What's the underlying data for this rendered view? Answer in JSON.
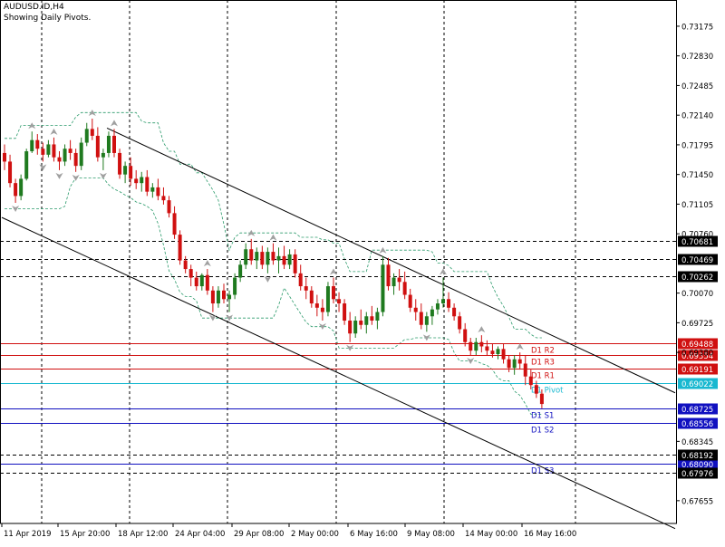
{
  "header": {
    "symbol_line": "AUDUSD.ID,H4",
    "subtitle": "Showing Daily Pivots."
  },
  "colors": {
    "bull": "#1f7a1f",
    "bear": "#d01010",
    "resistance": "#d01010",
    "pivot": "#18b8d0",
    "support": "#1010c0",
    "band": "#2a9a6a",
    "fractal": "#a0a0a0",
    "channel": "#000000",
    "grid": "#000000"
  },
  "chart_data": {
    "type": "candlestick",
    "title": "AUDUSD.ID,H4",
    "subtitle": "Showing Daily Pivots.",
    "ylim": [
      0.6739,
      0.7348
    ],
    "y_ticks": [
      "0.73175",
      "0.72830",
      "0.72485",
      "0.72140",
      "0.71795",
      "0.71450",
      "0.71105",
      "0.70760",
      "0.70070",
      "0.69725",
      "0.69380",
      "0.68345",
      "0.67655"
    ],
    "x_ticks": [
      "11 Apr 2019",
      "15 Apr 20:00",
      "18 Apr 12:00",
      "24 Apr 04:00",
      "29 Apr 08:00",
      "2 May 00:00",
      "6 May 16:00",
      "9 May 08:00",
      "14 May 00:00",
      "16 May 16:00"
    ],
    "grid": true,
    "pivots": [
      {
        "label": "D1 R3",
        "value": 0.69354,
        "price_label": "0.69354",
        "kind": "resistance"
      },
      {
        "label": "D1 R2",
        "value": 0.69488,
        "price_label": "0.69488",
        "kind": "resistance"
      },
      {
        "label": "D1 R1",
        "value": 0.69191,
        "price_label": "0.69191",
        "kind": "resistance"
      },
      {
        "label": "D1 Pivot",
        "value": 0.69022,
        "price_label": "0.69022",
        "kind": "pivot"
      },
      {
        "label": "D1 S1",
        "value": 0.68725,
        "price_label": "0.68725",
        "kind": "support"
      },
      {
        "label": "D1 S2",
        "value": 0.68556,
        "price_label": "0.68556",
        "kind": "support"
      },
      {
        "label": "D1 S3",
        "value": 0.6809,
        "price_label": "0.68090",
        "kind": "support"
      }
    ],
    "dashed_levels": [
      {
        "value": 0.70681,
        "price_label": "0.70681"
      },
      {
        "value": 0.70469,
        "price_label": "0.70469"
      },
      {
        "value": 0.70262,
        "price_label": "0.70262"
      },
      {
        "value": 0.68192,
        "price_label": "0.68192"
      },
      {
        "value": 0.67976,
        "price_label": "0.67976"
      }
    ],
    "channel_lines": [
      {
        "x": [
          118,
          745
        ],
        "y": [
          0.7199,
          0.6891
        ]
      },
      {
        "x": [
          2,
          745
        ],
        "y": [
          0.7095,
          0.6733
        ]
      }
    ],
    "candles": [
      [
        0.717,
        0.718,
        0.715,
        0.716
      ],
      [
        0.716,
        0.7168,
        0.713,
        0.7135
      ],
      [
        0.7135,
        0.714,
        0.7112,
        0.712
      ],
      [
        0.712,
        0.7145,
        0.7115,
        0.714
      ],
      [
        0.714,
        0.7175,
        0.7138,
        0.7172
      ],
      [
        0.7172,
        0.7195,
        0.717,
        0.7185
      ],
      [
        0.7185,
        0.7192,
        0.7168,
        0.7175
      ],
      [
        0.7175,
        0.7182,
        0.716,
        0.7168
      ],
      [
        0.7168,
        0.7185,
        0.7165,
        0.718
      ],
      [
        0.718,
        0.7188,
        0.716,
        0.7165
      ],
      [
        0.7165,
        0.7172,
        0.715,
        0.716
      ],
      [
        0.716,
        0.718,
        0.7155,
        0.7175
      ],
      [
        0.7175,
        0.7185,
        0.7162,
        0.717
      ],
      [
        0.717,
        0.7175,
        0.7148,
        0.7155
      ],
      [
        0.7155,
        0.7188,
        0.715,
        0.7182
      ],
      [
        0.7182,
        0.7205,
        0.7178,
        0.7198
      ],
      [
        0.7198,
        0.721,
        0.7185,
        0.719
      ],
      [
        0.719,
        0.72,
        0.716,
        0.7165
      ],
      [
        0.7165,
        0.7175,
        0.715,
        0.717
      ],
      [
        0.717,
        0.7195,
        0.7165,
        0.719
      ],
      [
        0.719,
        0.7198,
        0.7165,
        0.717
      ],
      [
        0.717,
        0.7175,
        0.714,
        0.7145
      ],
      [
        0.7145,
        0.716,
        0.7135,
        0.7155
      ],
      [
        0.7155,
        0.7165,
        0.7132,
        0.714
      ],
      [
        0.714,
        0.715,
        0.7128,
        0.7135
      ],
      [
        0.7135,
        0.7148,
        0.7125,
        0.7142
      ],
      [
        0.7142,
        0.715,
        0.712,
        0.7125
      ],
      [
        0.7125,
        0.7135,
        0.7118,
        0.713
      ],
      [
        0.713,
        0.714,
        0.7115,
        0.712
      ],
      [
        0.712,
        0.713,
        0.711,
        0.7115
      ],
      [
        0.7115,
        0.712,
        0.7095,
        0.71
      ],
      [
        0.71,
        0.7108,
        0.707,
        0.7075
      ],
      [
        0.7075,
        0.708,
        0.704,
        0.7045
      ],
      [
        0.7045,
        0.705,
        0.703,
        0.7035
      ],
      [
        0.7035,
        0.704,
        0.7015,
        0.7025
      ],
      [
        0.7025,
        0.7032,
        0.701,
        0.7015
      ],
      [
        0.7015,
        0.703,
        0.701,
        0.7028
      ],
      [
        0.7028,
        0.7035,
        0.7005,
        0.701
      ],
      [
        0.701,
        0.7015,
        0.6985,
        0.6995
      ],
      [
        0.6995,
        0.7015,
        0.699,
        0.701
      ],
      [
        0.701,
        0.7018,
        0.6995,
        0.7
      ],
      [
        0.7,
        0.701,
        0.6985,
        0.7005
      ],
      [
        0.7005,
        0.703,
        0.7,
        0.7025
      ],
      [
        0.7025,
        0.7045,
        0.702,
        0.704
      ],
      [
        0.704,
        0.7065,
        0.7035,
        0.7058
      ],
      [
        0.7058,
        0.707,
        0.704,
        0.7045
      ],
      [
        0.7045,
        0.706,
        0.7035,
        0.7055
      ],
      [
        0.7055,
        0.7062,
        0.7035,
        0.704
      ],
      [
        0.704,
        0.706,
        0.703,
        0.7055
      ],
      [
        0.7055,
        0.7065,
        0.704,
        0.7045
      ],
      [
        0.7045,
        0.706,
        0.703,
        0.705
      ],
      [
        0.705,
        0.7062,
        0.7035,
        0.704
      ],
      [
        0.704,
        0.7058,
        0.7035,
        0.7052
      ],
      [
        0.7052,
        0.7058,
        0.7025,
        0.703
      ],
      [
        0.703,
        0.704,
        0.701,
        0.7015
      ],
      [
        0.7015,
        0.7025,
        0.7,
        0.701
      ],
      [
        0.701,
        0.7015,
        0.699,
        0.6995
      ],
      [
        0.6995,
        0.7005,
        0.698,
        0.699
      ],
      [
        0.699,
        0.7,
        0.6975,
        0.6985
      ],
      [
        0.6985,
        0.702,
        0.698,
        0.7015
      ],
      [
        0.7015,
        0.7025,
        0.6995,
        0.7
      ],
      [
        0.7,
        0.7008,
        0.6985,
        0.6995
      ],
      [
        0.6995,
        0.7,
        0.697,
        0.6975
      ],
      [
        0.6975,
        0.6985,
        0.695,
        0.696
      ],
      [
        0.696,
        0.698,
        0.6955,
        0.6975
      ],
      [
        0.6975,
        0.6988,
        0.6965,
        0.697
      ],
      [
        0.697,
        0.6985,
        0.696,
        0.698
      ],
      [
        0.698,
        0.6992,
        0.697,
        0.6975
      ],
      [
        0.6975,
        0.699,
        0.6965,
        0.6985
      ],
      [
        0.6985,
        0.705,
        0.698,
        0.704
      ],
      [
        0.704,
        0.7048,
        0.701,
        0.7015
      ],
      [
        0.7015,
        0.703,
        0.7005,
        0.7025
      ],
      [
        0.7025,
        0.7035,
        0.701,
        0.702
      ],
      [
        0.702,
        0.7032,
        0.7,
        0.7005
      ],
      [
        0.7005,
        0.7012,
        0.6985,
        0.699
      ],
      [
        0.699,
        0.7,
        0.6975,
        0.6985
      ],
      [
        0.6985,
        0.6995,
        0.6965,
        0.697
      ],
      [
        0.697,
        0.6985,
        0.6962,
        0.698
      ],
      [
        0.698,
        0.6992,
        0.697,
        0.6988
      ],
      [
        0.6988,
        0.7,
        0.6982,
        0.6995
      ],
      [
        0.6995,
        0.7025,
        0.699,
        0.7
      ],
      [
        0.7,
        0.7008,
        0.6985,
        0.699
      ],
      [
        0.699,
        0.6995,
        0.6975,
        0.698
      ],
      [
        0.698,
        0.6985,
        0.696,
        0.6965
      ],
      [
        0.6965,
        0.6972,
        0.6945,
        0.695
      ],
      [
        0.695,
        0.6955,
        0.6935,
        0.694
      ],
      [
        0.694,
        0.6955,
        0.6935,
        0.695
      ],
      [
        0.695,
        0.6958,
        0.6938,
        0.6945
      ],
      [
        0.6945,
        0.6952,
        0.6935,
        0.694
      ],
      [
        0.694,
        0.6948,
        0.6932,
        0.6936
      ],
      [
        0.6936,
        0.6945,
        0.693,
        0.6942
      ],
      [
        0.6942,
        0.6948,
        0.6925,
        0.693
      ],
      [
        0.693,
        0.6935,
        0.6915,
        0.692
      ],
      [
        0.692,
        0.6935,
        0.6912,
        0.693
      ],
      [
        0.693,
        0.6938,
        0.6918,
        0.6925
      ],
      [
        0.6925,
        0.6935,
        0.69,
        0.691
      ],
      [
        0.691,
        0.6918,
        0.6895,
        0.69
      ],
      [
        0.69,
        0.6905,
        0.6885,
        0.689
      ],
      [
        0.689,
        0.6895,
        0.6873,
        0.6878
      ]
    ]
  }
}
